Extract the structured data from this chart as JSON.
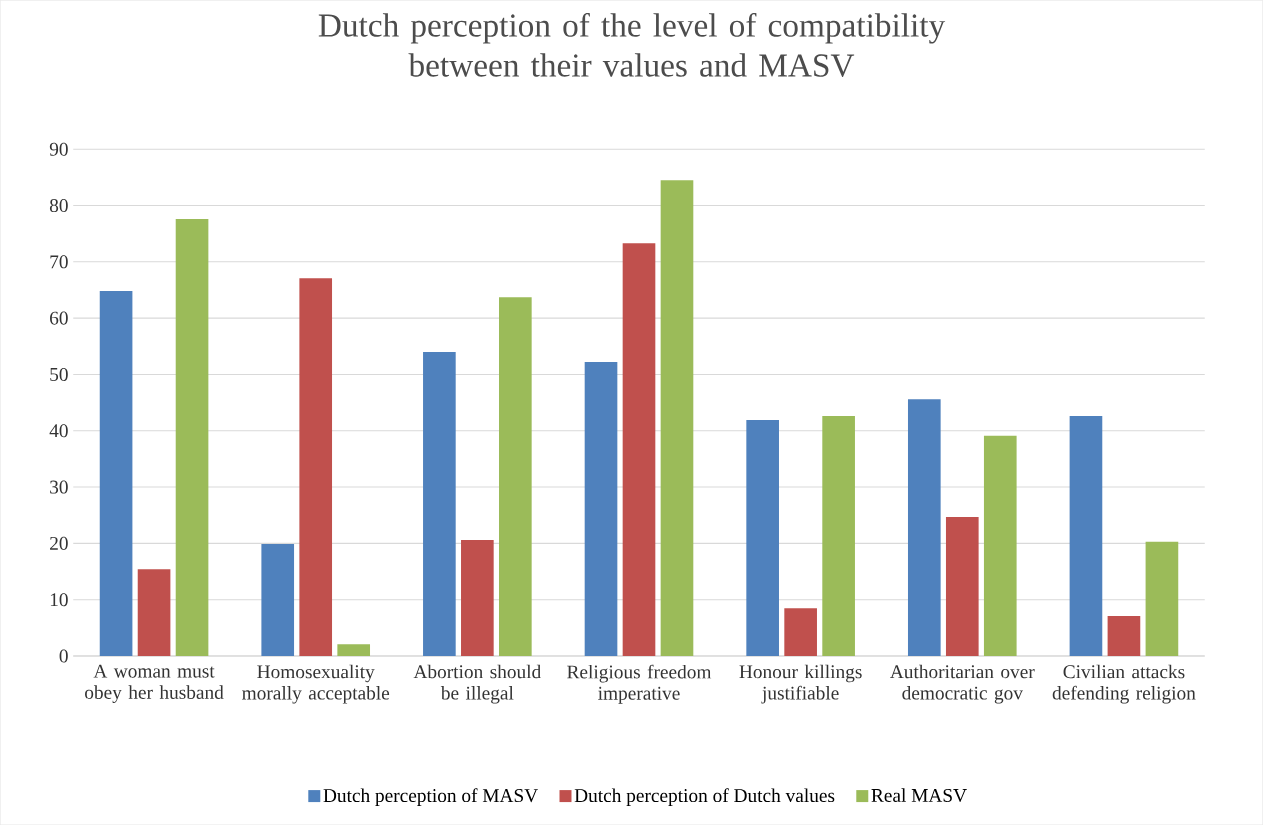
{
  "chart_data": {
    "type": "bar",
    "title": "Dutch perception of the level of compatibility between their values and MASV",
    "categories": [
      "A woman must obey her husband",
      "Homosexuality morally acceptable",
      "Abortion should be illegal",
      "Religious freedom imperative",
      "Honour killings justifiable",
      "Authoritarian over democratic gov",
      "Civilian attacks defending religion"
    ],
    "series": [
      {
        "name": "Dutch perception of MASV",
        "color": "#4f81bd",
        "values": [
          64.8,
          19.9,
          54.0,
          52.2,
          41.9,
          45.6,
          42.6
        ]
      },
      {
        "name": "Dutch perception of Dutch values",
        "color": "#c0504d",
        "values": [
          15.4,
          67.1,
          20.6,
          73.3,
          8.5,
          24.7,
          7.1
        ]
      },
      {
        "name": "Real MASV",
        "color": "#9bbb59",
        "values": [
          77.6,
          2.1,
          63.7,
          84.5,
          42.6,
          39.1,
          20.3
        ]
      }
    ],
    "ylim": [
      0,
      90
    ],
    "yticks": [
      0,
      10,
      20,
      30,
      40,
      50,
      60,
      70,
      80,
      90
    ],
    "grid": "y",
    "legend": "bottom"
  }
}
